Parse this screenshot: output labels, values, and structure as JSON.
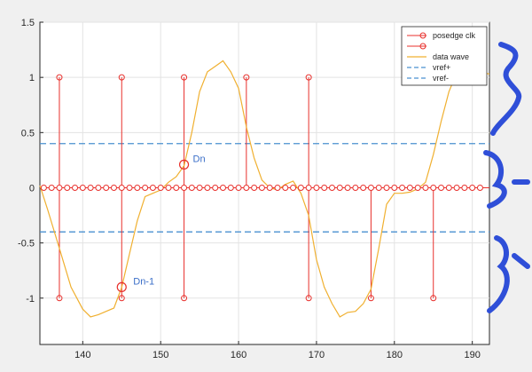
{
  "chart_data": {
    "type": "line",
    "xlim": [
      134.5,
      192.2
    ],
    "ylim": [
      -1.42,
      1.5
    ],
    "x_ticks": [
      140,
      150,
      160,
      170,
      180,
      190
    ],
    "y_ticks": [
      -1,
      -0.5,
      0,
      0.5,
      1,
      1.5
    ],
    "x_tick_labels": [
      "140",
      "150",
      "160",
      "170",
      "180",
      "190"
    ],
    "y_tick_labels": [
      "-1",
      "-0.5",
      "0",
      "0.5",
      "1",
      "1.5"
    ],
    "grid": true,
    "legend_position": "top-right",
    "legend": [
      {
        "label": "posedge clk",
        "color": "#e8302c",
        "style": "stem"
      },
      {
        "label": "",
        "color": "#e8302c",
        "style": "stem"
      },
      {
        "label": "data wave",
        "color": "#f0b030",
        "style": "line"
      },
      {
        "label": "vref+",
        "color": "#4a90d0",
        "style": "dashed"
      },
      {
        "label": "vref-",
        "color": "#4a90d0",
        "style": "dashed"
      }
    ],
    "clk_high": {
      "x": [
        137,
        153,
        161,
        169
      ],
      "value": 1
    },
    "clk_low": {
      "x": [
        145,
        161
      ],
      "value": 1
    },
    "clk_neg": {
      "x": [
        137,
        145,
        153,
        169,
        177,
        185
      ],
      "value": -1
    },
    "clk_up": {
      "x": [
        145,
        177,
        185
      ],
      "value": 1
    },
    "zero_markers": {
      "x_start": 134.5,
      "x_end": 192,
      "step": 1,
      "value": 0
    },
    "data_wave": {
      "x": [
        134.5,
        135.5,
        137,
        138.5,
        140,
        141,
        142,
        143,
        144,
        145,
        146,
        147,
        148,
        149,
        150,
        151,
        152,
        153,
        154,
        155,
        156,
        157,
        158,
        159,
        160,
        161,
        162,
        163,
        164,
        165,
        166,
        167,
        168,
        169,
        170,
        171,
        172,
        173,
        174,
        175,
        176,
        177,
        178,
        179,
        180,
        181,
        182,
        183,
        184,
        185,
        186,
        187,
        188,
        189,
        190,
        191,
        192.2
      ],
      "y": [
        0.02,
        -0.2,
        -0.55,
        -0.9,
        -1.1,
        -1.17,
        -1.15,
        -1.12,
        -1.09,
        -0.9,
        -0.6,
        -0.3,
        -0.08,
        -0.05,
        -0.02,
        0.05,
        0.1,
        0.2,
        0.5,
        0.87,
        1.05,
        1.1,
        1.15,
        1.05,
        0.9,
        0.55,
        0.27,
        0.07,
        0.0,
        -0.02,
        0.03,
        0.06,
        -0.05,
        -0.25,
        -0.65,
        -0.9,
        -1.05,
        -1.17,
        -1.13,
        -1.12,
        -1.05,
        -0.92,
        -0.55,
        -0.15,
        -0.05,
        -0.05,
        -0.04,
        -0.01,
        0.05,
        0.3,
        0.6,
        0.87,
        1.04,
        1.1,
        1.08,
        1.05,
        1.03
      ]
    },
    "vref_plus": 0.4,
    "vref_minus": -0.4,
    "highlights": [
      {
        "label": "Dn",
        "x": 153,
        "y": 0.21
      },
      {
        "label": "Dn-1",
        "x": 145,
        "y": -0.9
      }
    ],
    "right_annotations": [
      "{1",
      "{-",
      "{-"
    ]
  }
}
